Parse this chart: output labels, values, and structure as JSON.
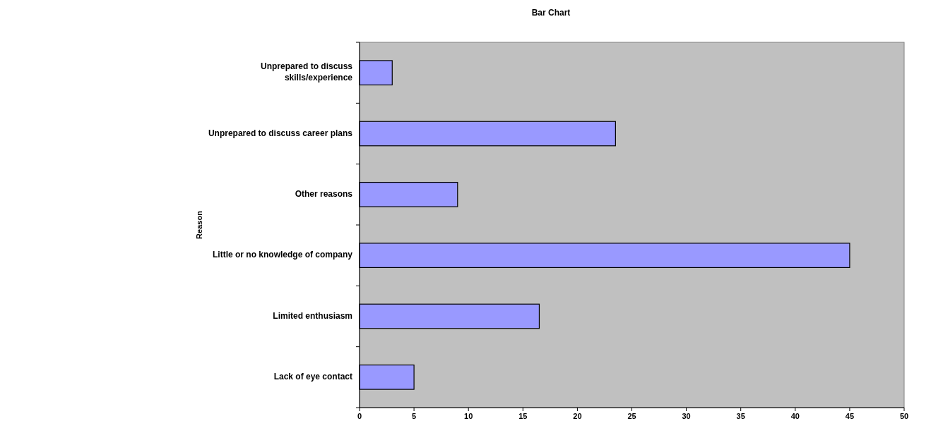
{
  "chart_data": {
    "type": "bar",
    "orientation": "horizontal",
    "title": "Bar Chart",
    "ylabel": "Reason",
    "categories": [
      "Unprepared to discuss skills/experience",
      "Unprepared to discuss career plans",
      "Other reasons",
      "Little or no knowledge of company",
      "Limited enthusiasm",
      "Lack of eye contact"
    ],
    "values": [
      3,
      23.5,
      9,
      45,
      16.5,
      5
    ],
    "color": "#9999ff",
    "xlim": [
      0,
      50
    ],
    "xticks": [
      0,
      5,
      10,
      15,
      20,
      25,
      30,
      35,
      40,
      45,
      50
    ],
    "grid": false
  }
}
